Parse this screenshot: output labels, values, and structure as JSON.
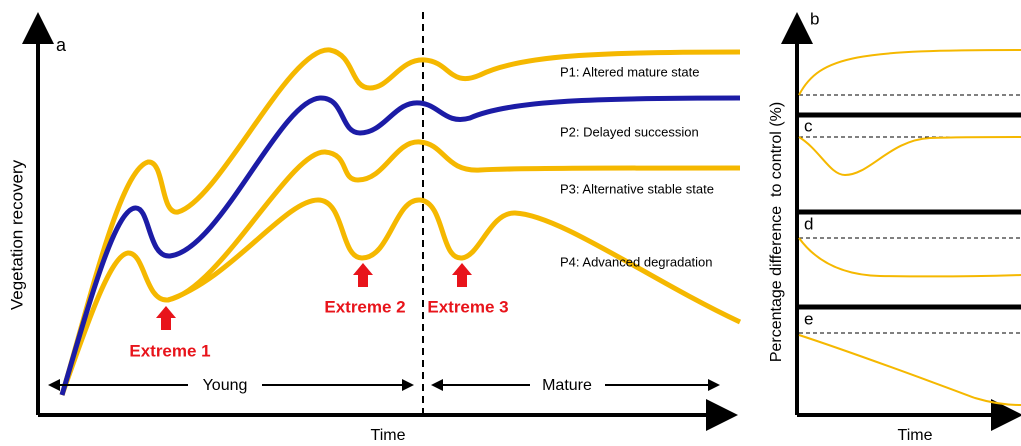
{
  "panel_a": {
    "label": "a",
    "y_axis_label": "Vegetation recovery",
    "x_axis_label": "Time",
    "pathways": [
      "P1: Altered mature state",
      "P2: Delayed succession",
      "P3: Alternative stable state",
      "P4: Advanced degradation"
    ],
    "events": [
      "Extreme 1",
      "Extreme 2",
      "Extreme 3"
    ],
    "stages": [
      "Young",
      "Mature"
    ]
  },
  "panel_b": {
    "y_axis_label": "Percentage difference  to control (%)",
    "x_axis_label": "Time",
    "subpanels": [
      {
        "label": "b"
      },
      {
        "label": "c"
      },
      {
        "label": "d"
      },
      {
        "label": "e"
      }
    ]
  }
}
